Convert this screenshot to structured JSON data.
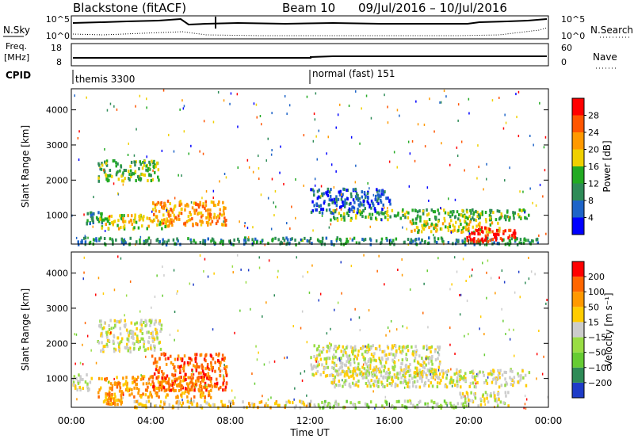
{
  "header": {
    "station": "Blackstone (fitACF)",
    "beam": "Beam 10",
    "date_range": "09/Jul/2016 – 10/Jul/2016"
  },
  "top_panels": {
    "nsky_label": "N.Sky",
    "nsky_ticks": [
      "10^5",
      "10^0"
    ],
    "nsearch_label": "N.Search",
    "nsearch_ticks": [
      "10^5",
      "10^0"
    ],
    "freq_label_1": "Freq.",
    "freq_label_2": "[MHz]",
    "freq_ticks": [
      "18",
      "8"
    ],
    "nave_label": "Nave",
    "nave_ticks": [
      "60",
      "0"
    ],
    "cpid_label": "CPID",
    "cpid_segments": [
      {
        "label": "themis 3300",
        "start_hour": 0
      },
      {
        "label": "normal (fast) 151",
        "start_hour": 12
      }
    ]
  },
  "chart_data": [
    {
      "type": "heatmap",
      "title": "",
      "xlabel": "Time UT",
      "ylabel": "Slant Range [km]",
      "xlim_hours": [
        0,
        24
      ],
      "ylim": [
        180,
        4600
      ],
      "xticks": [
        "00:00",
        "04:00",
        "08:00",
        "12:00",
        "16:00",
        "20:00",
        "00:00"
      ],
      "yticks": [
        1000,
        2000,
        3000,
        4000
      ],
      "colorbar": {
        "label": "Power [dB]",
        "ticks": [
          "4",
          "8",
          "12",
          "16",
          "20",
          "24",
          "28"
        ],
        "colors": [
          "#0000ff",
          "#1e64c8",
          "#2e8b57",
          "#22aa22",
          "#f0d000",
          "#ff9900",
          "#ff5500",
          "#ff0000"
        ]
      },
      "regions": [
        {
          "t": [
            0.7,
            1.6
          ],
          "r": [
            800,
            1150
          ],
          "level": 2
        },
        {
          "t": [
            1.4,
            5.0
          ],
          "r": [
            650,
            1050
          ],
          "level": 4
        },
        {
          "t": [
            4.0,
            7.8
          ],
          "r": [
            750,
            1450
          ],
          "level": 5
        },
        {
          "t": [
            1.3,
            4.4
          ],
          "r": [
            2000,
            2600
          ],
          "level": 3
        },
        {
          "t": [
            0.3,
            23.5
          ],
          "r": [
            200,
            400
          ],
          "level": 2
        },
        {
          "t": [
            12.0,
            16.0
          ],
          "r": [
            1100,
            1800
          ],
          "level": 1
        },
        {
          "t": [
            13.0,
            23.0
          ],
          "r": [
            900,
            1200
          ],
          "level": 3
        },
        {
          "t": [
            17.0,
            21.5
          ],
          "r": [
            550,
            900
          ],
          "level": 4
        },
        {
          "t": [
            19.8,
            22.4
          ],
          "r": [
            280,
            700
          ],
          "level": 7
        }
      ]
    },
    {
      "type": "heatmap",
      "title": "",
      "xlabel": "Time UT",
      "ylabel": "Slant Range [km]",
      "xlim_hours": [
        0,
        24
      ],
      "ylim": [
        180,
        4600
      ],
      "xticks": [
        "00:00",
        "04:00",
        "08:00",
        "12:00",
        "16:00",
        "20:00",
        "00:00"
      ],
      "yticks": [
        1000,
        2000,
        3000,
        4000
      ],
      "colorbar": {
        "label": "Velocity [m s⁻¹]",
        "ticks": [
          "200",
          "100",
          "50",
          "15",
          "−15",
          "−50",
          "−100",
          "−200"
        ],
        "colors": [
          "#1e3cc8",
          "#2e8b57",
          "#66cc33",
          "#99dd44",
          "#cccccc",
          "#ffcc00",
          "#ff9900",
          "#ff6600",
          "#ff0000"
        ]
      },
      "regions": [
        {
          "t": [
            0.0,
            1.0
          ],
          "r": [
            700,
            1200
          ],
          "level": 4
        },
        {
          "t": [
            1.3,
            7.0
          ],
          "r": [
            500,
            1100
          ],
          "level": 6
        },
        {
          "t": [
            4.0,
            7.8
          ],
          "r": [
            700,
            1750
          ],
          "level": 7
        },
        {
          "t": [
            1.2,
            4.5
          ],
          "r": [
            1800,
            2700
          ],
          "level": 4
        },
        {
          "t": [
            1.5,
            2.5
          ],
          "r": [
            300,
            500
          ],
          "level": 6
        },
        {
          "t": [
            3.0,
            12.0
          ],
          "r": [
            200,
            400
          ],
          "level": 5
        },
        {
          "t": [
            12.0,
            20.0
          ],
          "r": [
            200,
            400
          ],
          "level": 3
        },
        {
          "t": [
            12.0,
            18.5
          ],
          "r": [
            1100,
            2000
          ],
          "level": 4
        },
        {
          "t": [
            13.0,
            23.0
          ],
          "r": [
            800,
            1300
          ],
          "level": 4
        },
        {
          "t": [
            19.5,
            22.0
          ],
          "r": [
            250,
            650
          ],
          "level": 4
        }
      ]
    }
  ]
}
